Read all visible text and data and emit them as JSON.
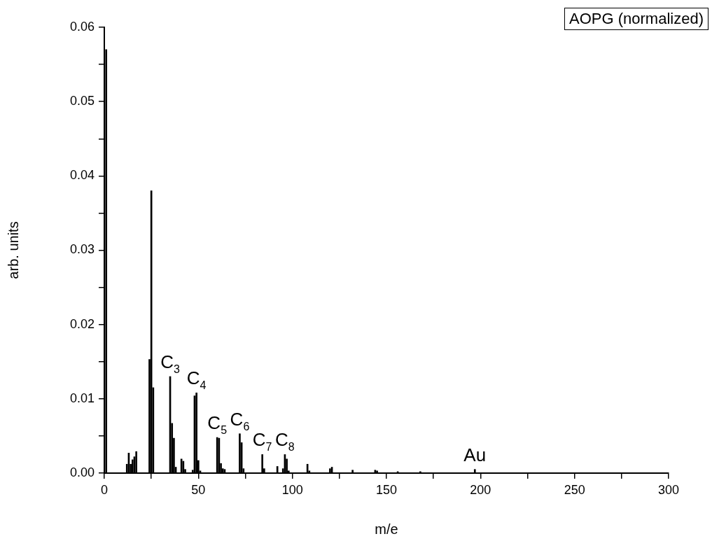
{
  "chart_data": {
    "type": "bar",
    "xlabel": "m/e",
    "ylabel": "arb. units",
    "color": "#000000",
    "x": [
      1,
      12,
      13,
      14,
      15,
      16,
      17,
      24,
      25,
      26,
      35,
      36,
      37,
      38,
      41,
      42,
      43,
      47,
      48,
      49,
      50,
      51,
      60,
      61,
      62,
      63,
      64,
      72,
      73,
      74,
      84,
      85,
      92,
      95,
      96,
      97,
      98,
      108,
      109,
      120,
      121,
      132,
      144,
      145,
      156,
      168,
      197
    ],
    "values": [
      0.057,
      0.0012,
      0.0027,
      0.0012,
      0.0018,
      0.0022,
      0.0029,
      0.0153,
      0.038,
      0.0115,
      0.013,
      0.0067,
      0.0047,
      0.0008,
      0.0019,
      0.0016,
      0.0005,
      0.0004,
      0.0104,
      0.0108,
      0.0017,
      0.0003,
      0.0048,
      0.0047,
      0.0013,
      0.0006,
      0.0005,
      0.0053,
      0.0041,
      0.0006,
      0.0025,
      0.0006,
      0.0009,
      0.0006,
      0.0025,
      0.0019,
      0.0003,
      0.0012,
      0.0003,
      0.0006,
      0.0008,
      0.0004,
      0.0004,
      0.0003,
      0.0002,
      0.0002,
      0.0005
    ],
    "xlim": [
      0,
      300
    ],
    "xticks": [
      0,
      {
        "value": 25,
        "label": null
      },
      50,
      {
        "value": 75,
        "label": null
      },
      100,
      {
        "value": 125,
        "label": null
      },
      150,
      {
        "value": 175,
        "label": null
      },
      200,
      {
        "value": 225,
        "label": null
      },
      250,
      {
        "value": 275,
        "label": null
      },
      300
    ],
    "ylim": [
      0,
      0.06
    ],
    "yticks": [
      {
        "value": 0,
        "label": "0.00"
      },
      {
        "value": 0.005,
        "label": null
      },
      {
        "value": 0.01,
        "label": "0.01"
      },
      {
        "value": 0.015,
        "label": null
      },
      {
        "value": 0.02,
        "label": "0.02"
      },
      {
        "value": 0.025,
        "label": null
      },
      {
        "value": 0.03,
        "label": "0.03"
      },
      {
        "value": 0.035,
        "label": null
      },
      {
        "value": 0.04,
        "label": "0.04"
      },
      {
        "value": 0.045,
        "label": null
      },
      {
        "value": 0.05,
        "label": "0.05"
      },
      {
        "value": 0.055,
        "label": null
      },
      {
        "value": 0.06,
        "label": "0.06"
      }
    ],
    "annotations": [
      "AOPG (normalized)",
      {
        "text": "C$_{3}$",
        "x": 35,
        "y": 0.013
      },
      {
        "text": "C$_{4}$",
        "x": 49,
        "y": 0.0108
      },
      {
        "text": "C$_{5}$",
        "x": 60,
        "y": 0.0048
      },
      {
        "text": "C$_{6}$",
        "x": 72,
        "y": 0.0053
      },
      {
        "text": "C$_{7}$",
        "x": 84,
        "y": 0.0025
      },
      {
        "text": "C$_{8}$",
        "x": 96,
        "y": 0.0025
      },
      {
        "text": "Au",
        "x": 197,
        "y": 0.0005
      }
    ]
  }
}
